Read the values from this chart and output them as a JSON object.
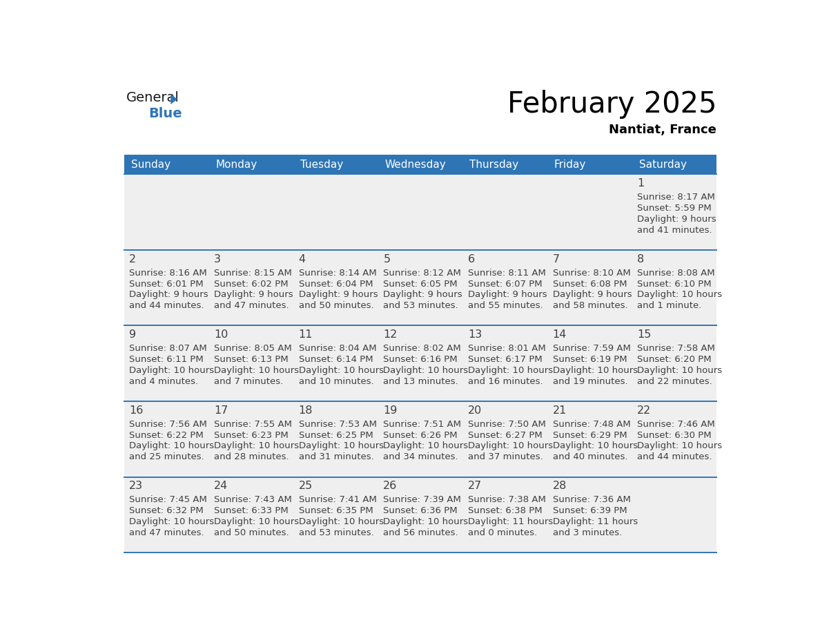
{
  "title": "February 2025",
  "subtitle": "Nantiat, France",
  "days_of_week": [
    "Sunday",
    "Monday",
    "Tuesday",
    "Wednesday",
    "Thursday",
    "Friday",
    "Saturday"
  ],
  "header_bg": "#2E75B6",
  "header_text": "#FFFFFF",
  "cell_bg": "#EFEFEF",
  "cell_top_bg": "#E8E8E8",
  "separator_color": "#2E75B6",
  "text_color": "#404040",
  "day_num_color": "#404040",
  "logo_text_general": "General",
  "logo_text_blue": "Blue",
  "logo_color_general": "#1a1a1a",
  "logo_color_blue": "#2E75B6",
  "logo_triangle_color": "#2E75B6",
  "calendar_data": [
    [
      null,
      null,
      null,
      null,
      null,
      null,
      {
        "day": "1",
        "sunrise": "8:17 AM",
        "sunset": "5:59 PM",
        "daylight_line1": "Daylight: 9 hours",
        "daylight_line2": "and 41 minutes."
      }
    ],
    [
      {
        "day": "2",
        "sunrise": "8:16 AM",
        "sunset": "6:01 PM",
        "daylight_line1": "Daylight: 9 hours",
        "daylight_line2": "and 44 minutes."
      },
      {
        "day": "3",
        "sunrise": "8:15 AM",
        "sunset": "6:02 PM",
        "daylight_line1": "Daylight: 9 hours",
        "daylight_line2": "and 47 minutes."
      },
      {
        "day": "4",
        "sunrise": "8:14 AM",
        "sunset": "6:04 PM",
        "daylight_line1": "Daylight: 9 hours",
        "daylight_line2": "and 50 minutes."
      },
      {
        "day": "5",
        "sunrise": "8:12 AM",
        "sunset": "6:05 PM",
        "daylight_line1": "Daylight: 9 hours",
        "daylight_line2": "and 53 minutes."
      },
      {
        "day": "6",
        "sunrise": "8:11 AM",
        "sunset": "6:07 PM",
        "daylight_line1": "Daylight: 9 hours",
        "daylight_line2": "and 55 minutes."
      },
      {
        "day": "7",
        "sunrise": "8:10 AM",
        "sunset": "6:08 PM",
        "daylight_line1": "Daylight: 9 hours",
        "daylight_line2": "and 58 minutes."
      },
      {
        "day": "8",
        "sunrise": "8:08 AM",
        "sunset": "6:10 PM",
        "daylight_line1": "Daylight: 10 hours",
        "daylight_line2": "and 1 minute."
      }
    ],
    [
      {
        "day": "9",
        "sunrise": "8:07 AM",
        "sunset": "6:11 PM",
        "daylight_line1": "Daylight: 10 hours",
        "daylight_line2": "and 4 minutes."
      },
      {
        "day": "10",
        "sunrise": "8:05 AM",
        "sunset": "6:13 PM",
        "daylight_line1": "Daylight: 10 hours",
        "daylight_line2": "and 7 minutes."
      },
      {
        "day": "11",
        "sunrise": "8:04 AM",
        "sunset": "6:14 PM",
        "daylight_line1": "Daylight: 10 hours",
        "daylight_line2": "and 10 minutes."
      },
      {
        "day": "12",
        "sunrise": "8:02 AM",
        "sunset": "6:16 PM",
        "daylight_line1": "Daylight: 10 hours",
        "daylight_line2": "and 13 minutes."
      },
      {
        "day": "13",
        "sunrise": "8:01 AM",
        "sunset": "6:17 PM",
        "daylight_line1": "Daylight: 10 hours",
        "daylight_line2": "and 16 minutes."
      },
      {
        "day": "14",
        "sunrise": "7:59 AM",
        "sunset": "6:19 PM",
        "daylight_line1": "Daylight: 10 hours",
        "daylight_line2": "and 19 minutes."
      },
      {
        "day": "15",
        "sunrise": "7:58 AM",
        "sunset": "6:20 PM",
        "daylight_line1": "Daylight: 10 hours",
        "daylight_line2": "and 22 minutes."
      }
    ],
    [
      {
        "day": "16",
        "sunrise": "7:56 AM",
        "sunset": "6:22 PM",
        "daylight_line1": "Daylight: 10 hours",
        "daylight_line2": "and 25 minutes."
      },
      {
        "day": "17",
        "sunrise": "7:55 AM",
        "sunset": "6:23 PM",
        "daylight_line1": "Daylight: 10 hours",
        "daylight_line2": "and 28 minutes."
      },
      {
        "day": "18",
        "sunrise": "7:53 AM",
        "sunset": "6:25 PM",
        "daylight_line1": "Daylight: 10 hours",
        "daylight_line2": "and 31 minutes."
      },
      {
        "day": "19",
        "sunrise": "7:51 AM",
        "sunset": "6:26 PM",
        "daylight_line1": "Daylight: 10 hours",
        "daylight_line2": "and 34 minutes."
      },
      {
        "day": "20",
        "sunrise": "7:50 AM",
        "sunset": "6:27 PM",
        "daylight_line1": "Daylight: 10 hours",
        "daylight_line2": "and 37 minutes."
      },
      {
        "day": "21",
        "sunrise": "7:48 AM",
        "sunset": "6:29 PM",
        "daylight_line1": "Daylight: 10 hours",
        "daylight_line2": "and 40 minutes."
      },
      {
        "day": "22",
        "sunrise": "7:46 AM",
        "sunset": "6:30 PM",
        "daylight_line1": "Daylight: 10 hours",
        "daylight_line2": "and 44 minutes."
      }
    ],
    [
      {
        "day": "23",
        "sunrise": "7:45 AM",
        "sunset": "6:32 PM",
        "daylight_line1": "Daylight: 10 hours",
        "daylight_line2": "and 47 minutes."
      },
      {
        "day": "24",
        "sunrise": "7:43 AM",
        "sunset": "6:33 PM",
        "daylight_line1": "Daylight: 10 hours",
        "daylight_line2": "and 50 minutes."
      },
      {
        "day": "25",
        "sunrise": "7:41 AM",
        "sunset": "6:35 PM",
        "daylight_line1": "Daylight: 10 hours",
        "daylight_line2": "and 53 minutes."
      },
      {
        "day": "26",
        "sunrise": "7:39 AM",
        "sunset": "6:36 PM",
        "daylight_line1": "Daylight: 10 hours",
        "daylight_line2": "and 56 minutes."
      },
      {
        "day": "27",
        "sunrise": "7:38 AM",
        "sunset": "6:38 PM",
        "daylight_line1": "Daylight: 11 hours",
        "daylight_line2": "and 0 minutes."
      },
      {
        "day": "28",
        "sunrise": "7:36 AM",
        "sunset": "6:39 PM",
        "daylight_line1": "Daylight: 11 hours",
        "daylight_line2": "and 3 minutes."
      },
      null
    ]
  ]
}
